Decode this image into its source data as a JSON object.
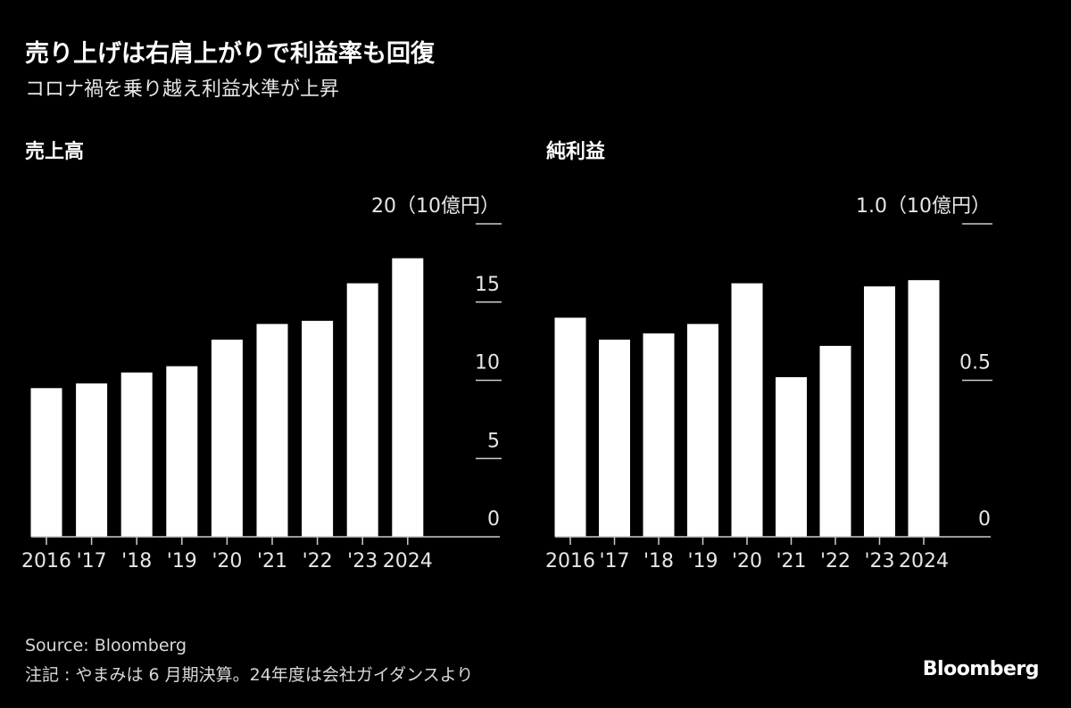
{
  "header": {
    "title": "売り上げは右肩上がりで利益率も回復",
    "subtitle": "コロナ禍を乗り越え利益水準が上昇"
  },
  "footer": {
    "source": "Source: Bloomberg",
    "note": "注記 : やまみは 6 月期決算。24年度は会社ガイダンスより",
    "logo": "Bloomberg"
  },
  "colors": {
    "background": "#000000",
    "bars": "#ffffff",
    "axis": "#cccccc"
  },
  "chart_data": [
    {
      "type": "bar",
      "title": "売上高",
      "unit_label": "20（10億円）",
      "categories": [
        "2016",
        "'17",
        "'18",
        "'19",
        "'20",
        "'21",
        "'22",
        "'23",
        "2024"
      ],
      "values": [
        9.5,
        9.8,
        10.5,
        10.9,
        12.6,
        13.6,
        13.8,
        16.2,
        17.8
      ],
      "ylim": [
        0,
        20
      ],
      "yticks": [
        0,
        5,
        10,
        15,
        20
      ],
      "ytick_labels": [
        "0",
        "5",
        "10",
        "15"
      ],
      "grid": false,
      "legend": "none"
    },
    {
      "type": "bar",
      "title": "純利益",
      "unit_label": "1.0（10億円）",
      "categories": [
        "2016",
        "'17",
        "'18",
        "'19",
        "'20",
        "'21",
        "'22",
        "'23",
        "2024"
      ],
      "values": [
        0.7,
        0.63,
        0.65,
        0.68,
        0.81,
        0.51,
        0.61,
        0.8,
        0.82
      ],
      "ylim": [
        0,
        1.0
      ],
      "yticks": [
        0,
        0.5,
        1.0
      ],
      "ytick_labels": [
        "0",
        "0.5"
      ],
      "grid": false,
      "legend": "none"
    }
  ]
}
